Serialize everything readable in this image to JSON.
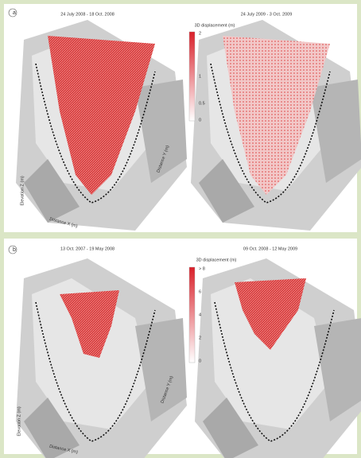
{
  "panels": [
    {
      "label": "a",
      "maps": [
        {
          "title": "24 July 2008 - 18 Oct. 2008"
        },
        {
          "title": "24 July 2009 - 3 Oct. 2009"
        }
      ],
      "colorbar": {
        "title": "3D displacement (m)",
        "ticks": [
          "2",
          "1",
          "0.5",
          "0"
        ]
      },
      "axis_labels": {
        "z": "Elevation Z (m)",
        "x": "Distance X (m)",
        "y": "Distance Y (m)"
      }
    },
    {
      "label": "b",
      "maps": [
        {
          "title": "13 Oct. 2007 - 19 May 2008"
        },
        {
          "title": "09 Oct. 2008 - 12 May 2009"
        }
      ],
      "colorbar": {
        "title": "3D displacement (m)",
        "ticks": [
          "> 8",
          "6",
          "4",
          "2",
          "0"
        ]
      },
      "axis_labels": {
        "z": "Elevation Z (m)",
        "x": "Distance X (m)",
        "y": "Distance Y (m)"
      }
    }
  ]
}
